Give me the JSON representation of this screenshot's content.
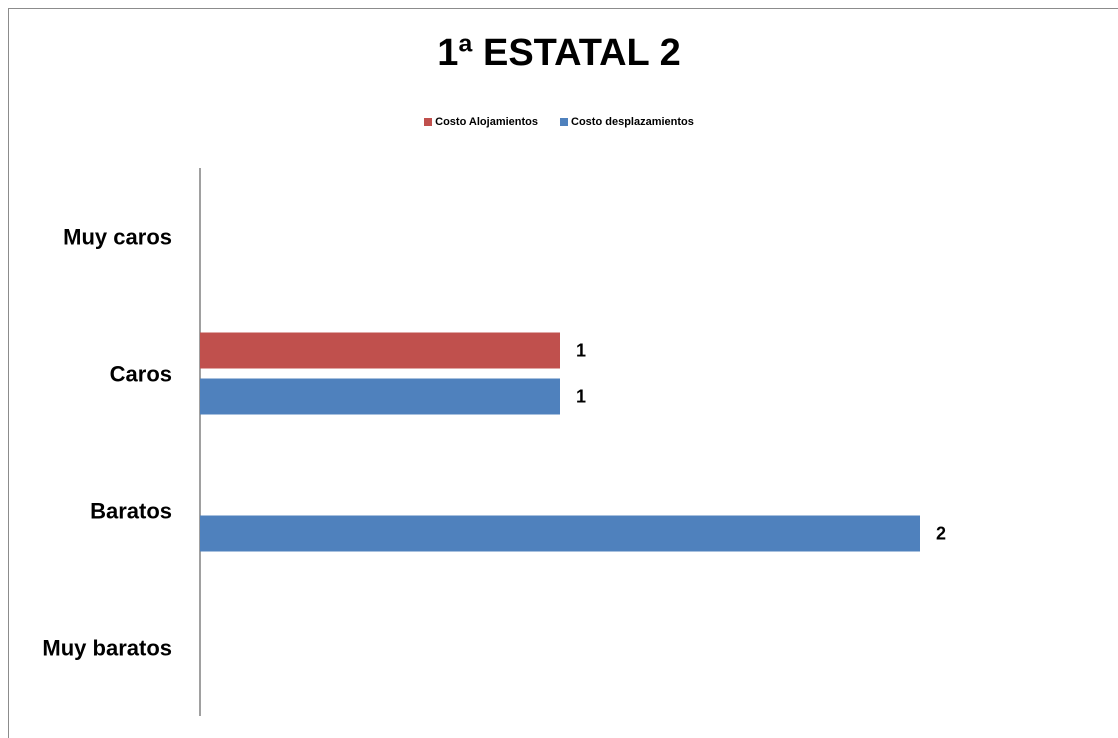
{
  "chart_data": {
    "type": "bar",
    "orientation": "horizontal",
    "title": "1ª ESTATAL 2",
    "categories": [
      "Muy caros",
      "Caros",
      "Baratos",
      "Muy baratos"
    ],
    "series": [
      {
        "name": "Costo Alojamientos",
        "values": [
          0,
          1,
          0,
          0
        ],
        "color": "#c0504d"
      },
      {
        "name": "Costo desplazamientos",
        "values": [
          0,
          1,
          2,
          0
        ],
        "color": "#4f81bd"
      }
    ],
    "xlim": [
      0,
      2
    ],
    "grid": false,
    "legend": "top-center",
    "data_labels": true
  }
}
